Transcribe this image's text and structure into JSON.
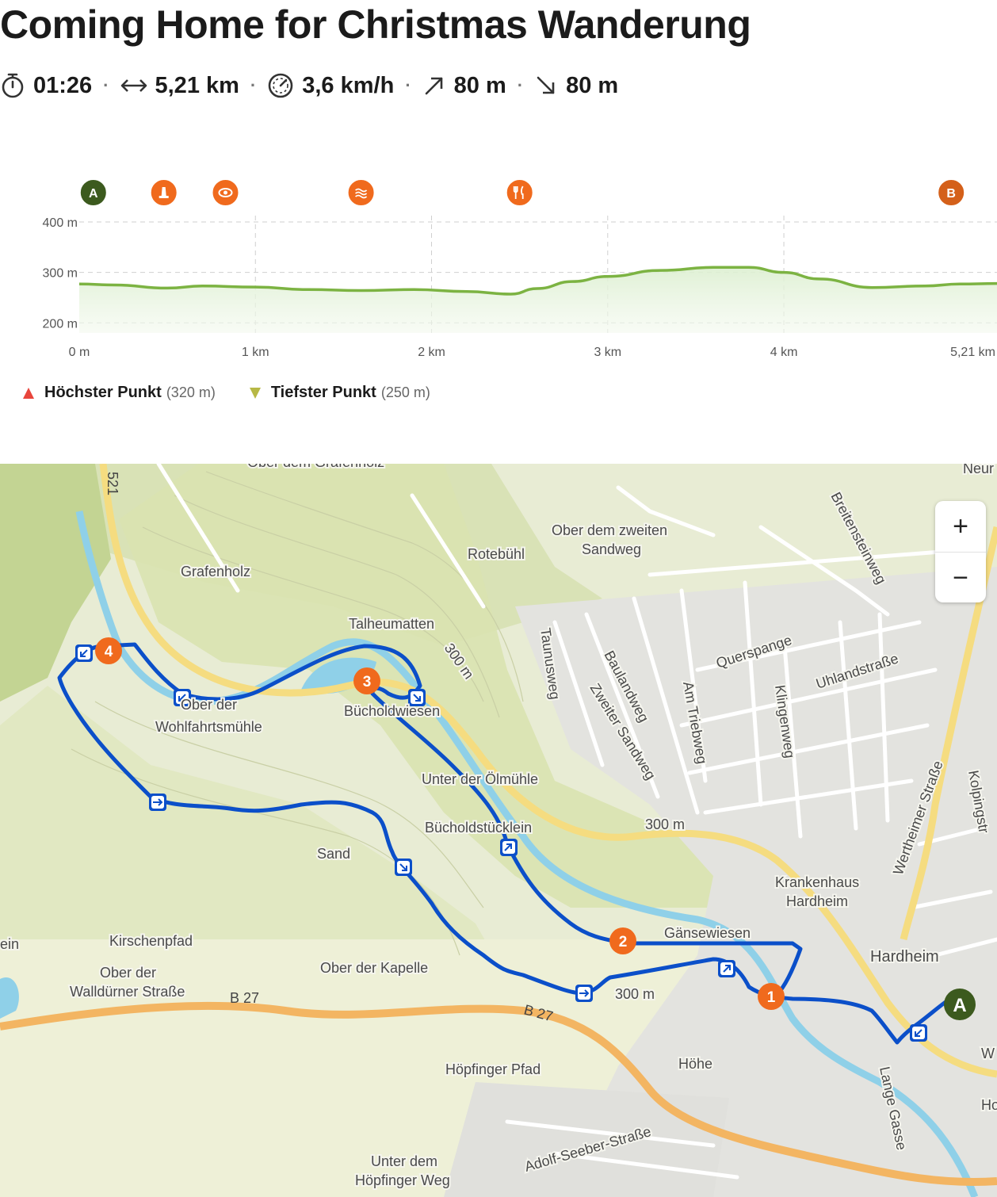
{
  "title": "Coming Home for Christmas Wanderung",
  "stats": {
    "duration": "01:26",
    "distance": "5,21 km",
    "speed": "3,6 km/h",
    "ascent": "80 m",
    "descent": "80 m",
    "separator": "·"
  },
  "icons": {
    "duration": "stopwatch-icon",
    "distance": "distance-arrows-icon",
    "speed": "speedometer-icon",
    "ascent": "arrow-up-right-icon",
    "descent": "arrow-down-right-icon"
  },
  "profile": {
    "markers": [
      {
        "type": "start",
        "label": "A",
        "icon": "start-marker",
        "color": "#3c5a1e",
        "km": 0.08
      },
      {
        "type": "poi",
        "label": "",
        "icon": "monument-icon",
        "color": "#f06a1d",
        "km": 0.48
      },
      {
        "type": "poi",
        "label": "",
        "icon": "eye-icon",
        "color": "#f06a1d",
        "km": 0.83
      },
      {
        "type": "poi",
        "label": "",
        "icon": "water-icon",
        "color": "#f06a1d",
        "km": 1.6
      },
      {
        "type": "poi",
        "label": "",
        "icon": "restaurant-icon",
        "color": "#f06a1d",
        "km": 2.5
      },
      {
        "type": "end",
        "label": "B",
        "icon": "end-marker",
        "color": "#d4601a",
        "km": 4.95
      }
    ]
  },
  "chart_data": {
    "type": "area",
    "title": "",
    "xlabel": "",
    "ylabel": "",
    "x_ticks": [
      "0 m",
      "1 km",
      "2 km",
      "3 km",
      "4 km",
      "5,21 km"
    ],
    "y_ticks": [
      "200 m",
      "300 m",
      "400 m"
    ],
    "xlim": [
      0,
      5.21
    ],
    "ylim": [
      180,
      400
    ],
    "grid": true,
    "x": [
      0,
      0.2,
      0.5,
      0.7,
      1.0,
      1.3,
      1.6,
      1.9,
      2.2,
      2.45,
      2.6,
      2.8,
      3.0,
      3.3,
      3.6,
      3.8,
      4.0,
      4.2,
      4.5,
      4.8,
      5.0,
      5.21
    ],
    "series": [
      {
        "values": [
          277,
          275,
          269,
          273,
          271,
          266,
          264,
          266,
          262,
          257,
          268,
          282,
          292,
          304,
          310,
          310,
          300,
          287,
          270,
          273,
          277,
          278
        ]
      }
    ],
    "color": "#7cb342"
  },
  "summary": {
    "highest_label": "Höchster Punkt",
    "highest_value": "(320 m)",
    "lowest_label": "Tiefster Punkt",
    "lowest_value": "(250 m)"
  },
  "map": {
    "labels": {
      "grafenholz": "Grafenholz",
      "ober_grafenholz": "Ober dem Grafenholz",
      "rotebuehl": "Rotebühl",
      "ober_zweiten_1": "Ober dem zweiten",
      "ober_zweiten_2": "Sandweg",
      "breitensteinweg": "Breitensteinweg",
      "neu": "Neur",
      "talheumatten": "Talheumatten",
      "c300a": "300 m",
      "taunusweg": "Taunusweg",
      "baulandweg": "Baulandweg",
      "zweiter_sandweg": "Zweiter Sandweg",
      "am_triebweg": "Am Triebweg",
      "querspange": "Querspange",
      "klingenweg": "Klingenweg",
      "uhlandstrasse": "Uhlandstraße",
      "wertheimer": "Wertheimer Straße",
      "kolping": "Kolpingstr",
      "ober_wohl_1": "Ober der",
      "ober_wohl_2": "Wohlfahrtsmühle",
      "bucholdwiesen": "Bücholdwiesen",
      "unter_oelmuehle": "Unter der Ölmühle",
      "buchold_stuecklein": "Bücholdstücklein",
      "c300b": "300 m",
      "sand": "Sand",
      "krankenhaus_1": "Krankenhaus",
      "krankenhaus_2": "Hardheim",
      "gaensewiesen": "Gänsewiesen",
      "hardheim": "Hardheim",
      "ein": "ein",
      "kirschenpfad": "Kirschenpfad",
      "ober_kapelle": "Ober der Kapelle",
      "ober_wallduerner_1": "Ober der",
      "ober_wallduerner_2": "Walldürner Straße",
      "c300c": "300 m",
      "b27a": "B 27",
      "b27b": "B 27",
      "road521": "521",
      "hoepfinger_pfad": "Höpfinger Pfad",
      "hoehe": "Höhe",
      "lange_gasse": "Lange Gasse",
      "adolf": "Adolf-Seeber-Straße",
      "unter_hoepf_1": "Unter dem",
      "unter_hoepf_2": "Höpfinger Weg",
      "ho": "Ho",
      "w": "W"
    },
    "waypoints": [
      "1",
      "2",
      "3",
      "4"
    ],
    "start_label": "A",
    "zoom_in": "+",
    "zoom_out": "−"
  }
}
